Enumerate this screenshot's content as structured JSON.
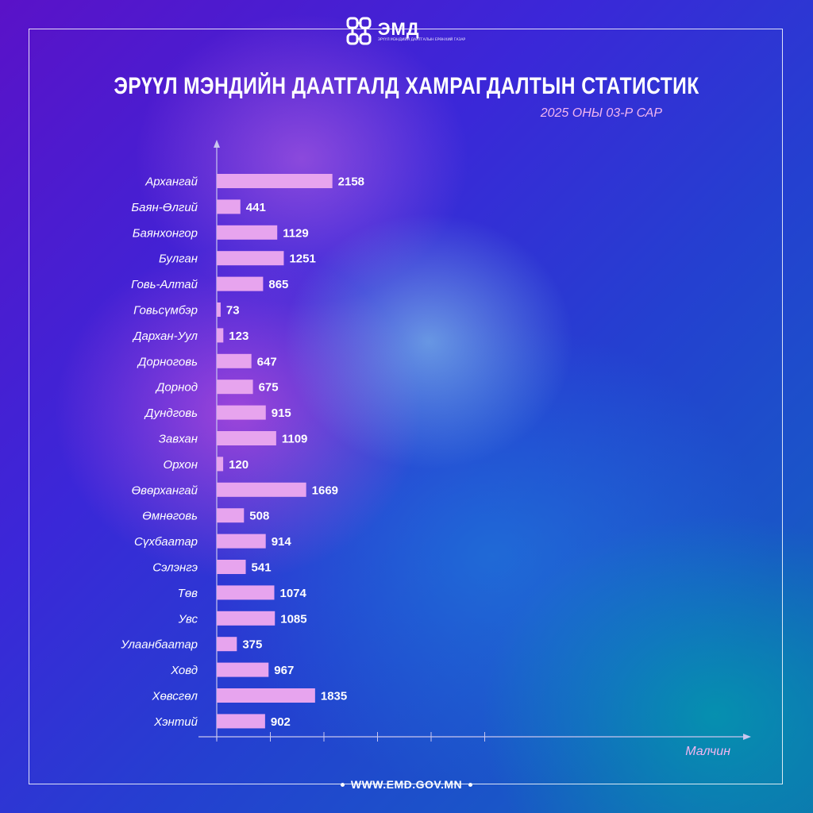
{
  "header": {
    "logo_text": "ЭМД",
    "logo_subtitle": "ЭРҮҮЛ МЭНДИЙН ДААТГАЛЫН ЕРӨНХИЙ ГАЗАР",
    "title": "ЭРҮҮЛ МЭНДИЙН ДААТГАЛД ХАМРАГДАЛТЫН СТАТИСТИК",
    "subtitle": "2025 ОНЫ 03-Р  САР"
  },
  "footer": {
    "website": "WWW.EMD.GOV.MN"
  },
  "colors": {
    "bar": "#e7a4ee",
    "label": "#ffffff",
    "axis": "#c9c6ee",
    "subtitle": "#f2b6f0"
  },
  "chart_data": {
    "type": "bar",
    "orientation": "horizontal",
    "xlabel": "Малчин",
    "ylabel": "",
    "xlim": [
      0,
      5000
    ],
    "categories": [
      "Архангай",
      "Баян-Өлгий",
      "Баянхонгор",
      "Булган",
      "Говь-Алтай",
      "Говьсүмбэр",
      "Дархан-Уул",
      "Дорноговь",
      "Дорнод",
      "Дундговь",
      "Завхан",
      "Орхон",
      "Өвөрхангай",
      "Өмнөговь",
      "Сүхбаатар",
      "Сэлэнгэ",
      "Төв",
      "Увс",
      "Улаанбаатар",
      "Ховд",
      "Хөвсгөл",
      "Хэнтий"
    ],
    "values": [
      2158,
      441,
      1129,
      1251,
      865,
      73,
      123,
      647,
      675,
      915,
      1109,
      120,
      1669,
      508,
      914,
      541,
      1074,
      1085,
      375,
      967,
      1835,
      902
    ],
    "value_labels": [
      "2158",
      "441",
      "1129",
      "1251",
      "865",
      "73",
      "123",
      "647",
      "675",
      "915",
      "1109",
      "120",
      "1669",
      "508",
      "914",
      "541",
      "1074",
      "1085",
      "375",
      "967",
      "1835",
      "902"
    ],
    "grid": false
  }
}
